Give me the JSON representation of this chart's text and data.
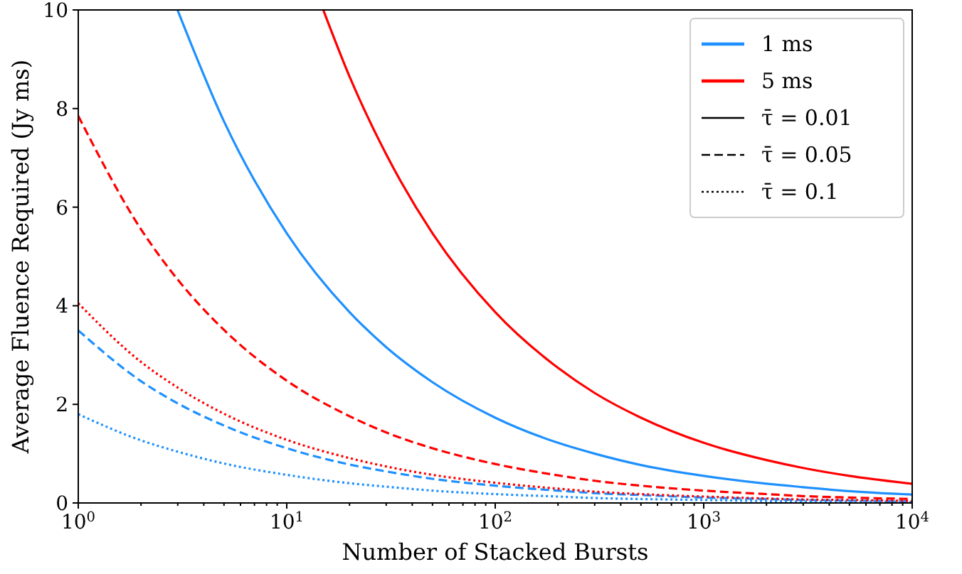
{
  "chart_data": {
    "type": "line",
    "xlabel": "Number of Stacked Bursts",
    "ylabel": "Average Fluence Required (Jy ms)",
    "log": "x",
    "xlim": [
      1,
      10000
    ],
    "ylim": [
      0,
      10
    ],
    "xticks": [
      {
        "value": 1,
        "label": "10$^{0}$"
      },
      {
        "value": 2,
        "label": null
      },
      {
        "value": 3,
        "label": null
      },
      {
        "value": 4,
        "label": null
      },
      {
        "value": 5,
        "label": null
      },
      {
        "value": 6,
        "label": null
      },
      {
        "value": 7,
        "label": null
      },
      {
        "value": 8,
        "label": null
      },
      {
        "value": 9,
        "label": null
      },
      {
        "value": 10,
        "label": "10$^{1}$"
      },
      {
        "value": 20,
        "label": null
      },
      {
        "value": 30,
        "label": null
      },
      {
        "value": 40,
        "label": null
      },
      {
        "value": 50,
        "label": null
      },
      {
        "value": 60,
        "label": null
      },
      {
        "value": 70,
        "label": null
      },
      {
        "value": 80,
        "label": null
      },
      {
        "value": 90,
        "label": null
      },
      {
        "value": 100,
        "label": "10$^{2}$"
      },
      {
        "value": 200,
        "label": null
      },
      {
        "value": 300,
        "label": null
      },
      {
        "value": 400,
        "label": null
      },
      {
        "value": 500,
        "label": null
      },
      {
        "value": 600,
        "label": null
      },
      {
        "value": 700,
        "label": null
      },
      {
        "value": 800,
        "label": null
      },
      {
        "value": 900,
        "label": null
      },
      {
        "value": 1000,
        "label": "10$^{3}$"
      },
      {
        "value": 2000,
        "label": null
      },
      {
        "value": 3000,
        "label": null
      },
      {
        "value": 4000,
        "label": null
      },
      {
        "value": 5000,
        "label": null
      },
      {
        "value": 6000,
        "label": null
      },
      {
        "value": 7000,
        "label": null
      },
      {
        "value": 8000,
        "label": null
      },
      {
        "value": 9000,
        "label": null
      },
      {
        "value": 10000,
        "label": "10$^{4}$"
      }
    ],
    "yticks": [
      0,
      2,
      4,
      6,
      8,
      10
    ],
    "grid": false,
    "legend": "top right",
    "series": [
      {
        "color": "#1e90ff",
        "line_style": "solid",
        "x": [
          3,
          5,
          10,
          20,
          30,
          50,
          100,
          200,
          300,
          500,
          1000,
          2000,
          3000,
          5000,
          10000
        ],
        "values": [
          9.99,
          7.74,
          5.47,
          3.87,
          3.16,
          2.45,
          1.73,
          1.22,
          1.0,
          0.77,
          0.55,
          0.39,
          0.32,
          0.24,
          0.17
        ]
      },
      {
        "color": "#ff0000",
        "line_style": "solid",
        "x": [
          15,
          20,
          30,
          50,
          100,
          200,
          300,
          500,
          1000,
          2000,
          3000,
          5000,
          10000
        ],
        "values": [
          9.99,
          8.65,
          7.07,
          5.47,
          3.87,
          2.74,
          2.23,
          1.73,
          1.22,
          0.87,
          0.71,
          0.55,
          0.39
        ]
      },
      {
        "color": "#1e90ff",
        "line_style": "dashed",
        "x": [
          1,
          2,
          3,
          5,
          10,
          20,
          30,
          50,
          100,
          200,
          300,
          500,
          1000,
          2000,
          3000,
          5000,
          10000
        ],
        "values": [
          3.5,
          2.47,
          2.02,
          1.57,
          1.11,
          0.78,
          0.64,
          0.49,
          0.35,
          0.25,
          0.2,
          0.16,
          0.11,
          0.08,
          0.06,
          0.05,
          0.03
        ]
      },
      {
        "color": "#ff0000",
        "line_style": "dashed",
        "x": [
          1,
          2,
          3,
          5,
          10,
          20,
          30,
          50,
          100,
          200,
          300,
          500,
          1000,
          2000,
          3000,
          5000,
          10000
        ],
        "values": [
          7.85,
          5.55,
          4.53,
          3.51,
          2.48,
          1.76,
          1.43,
          1.11,
          0.79,
          0.56,
          0.45,
          0.35,
          0.25,
          0.18,
          0.14,
          0.11,
          0.08
        ]
      },
      {
        "color": "#1e90ff",
        "line_style": "dotted",
        "x": [
          1,
          2,
          3,
          5,
          10,
          20,
          30,
          50,
          100,
          200,
          300,
          500,
          1000,
          2000,
          3000,
          5000,
          10000
        ],
        "values": [
          1.8,
          1.27,
          1.04,
          0.8,
          0.57,
          0.4,
          0.33,
          0.25,
          0.18,
          0.13,
          0.1,
          0.08,
          0.06,
          0.04,
          0.03,
          0.03,
          0.02
        ]
      },
      {
        "color": "#ff0000",
        "line_style": "dotted",
        "x": [
          1,
          2,
          3,
          5,
          10,
          20,
          30,
          50,
          100,
          200,
          300,
          500,
          1000,
          2000,
          3000,
          5000,
          10000
        ],
        "values": [
          4.05,
          2.86,
          2.34,
          1.81,
          1.28,
          0.91,
          0.74,
          0.57,
          0.41,
          0.29,
          0.23,
          0.18,
          0.13,
          0.09,
          0.07,
          0.06,
          0.04
        ]
      },
      {
        "name": "1 ms",
        "color": "#1e90ff",
        "line_style": "solid"
      },
      {
        "name": "5 ms",
        "color": "#ff0000",
        "line_style": "solid"
      },
      {
        "name": "τ̄ = 0.01",
        "color": "#000000",
        "line_style": "solid"
      },
      {
        "name": "τ̄ = 0.05",
        "color": "#000000",
        "line_style": "dashed"
      },
      {
        "name": "τ̄ = 0.1",
        "color": "#000000",
        "line_style": "dotted"
      }
    ]
  }
}
